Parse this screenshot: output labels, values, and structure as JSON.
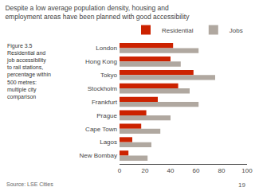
{
  "chart_data": {
    "type": "bar",
    "orientation": "horizontal",
    "title": "Despite a low average population density, housing and\nemployment areas have been planned with good accessibility",
    "annotations": [
      "Figure 3.5\nResidential and\njob accessibility\nto rail stations,\npercentage within\n500 metres:\nmultiple city\ncomparison",
      "Source: LSE Cities",
      "19"
    ],
    "categories": [
      "London",
      "Hong Kong",
      "Tokyo",
      "Stockholm",
      "Frankfurt",
      "Prague",
      "Cape Town",
      "Lagos",
      "New Bombay"
    ],
    "series": [
      {
        "name": "Residential",
        "color": "#cc2200",
        "values": [
          42,
          40,
          58,
          46,
          30,
          21,
          17,
          10,
          7
        ]
      },
      {
        "name": "Jobs",
        "color": "#b0a8a0",
        "values": [
          62,
          48,
          75,
          55,
          62,
          40,
          32,
          25,
          22
        ]
      }
    ],
    "xlim": [
      0,
      100
    ],
    "xticks": [
      0,
      20,
      40,
      60,
      80,
      100
    ],
    "grid": false,
    "legend": "upper right"
  }
}
